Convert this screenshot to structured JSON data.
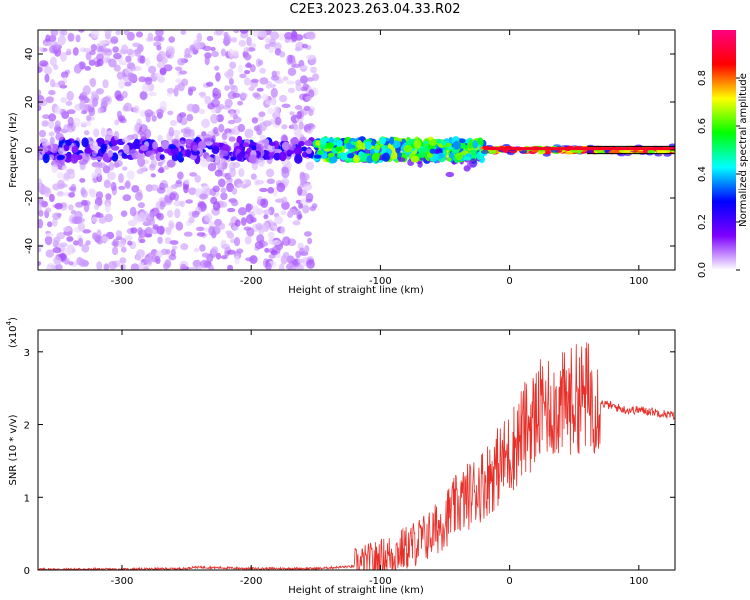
{
  "title": "C2E3.2023.263.04.33.R02",
  "chart_data": [
    {
      "type": "heatmap",
      "xlabel": "Height of straight line (km)",
      "ylabel": "Frequency (Hz)",
      "xlim": [
        -365,
        128
      ],
      "ylim": [
        -50,
        50
      ],
      "xticks": [
        -300,
        -200,
        -100,
        0,
        100
      ],
      "yticks": [
        -40,
        -20,
        0,
        20,
        40
      ],
      "colorbar": {
        "label": "Normalized spectral amplitude",
        "range": [
          0.0,
          1.0
        ],
        "ticks": [
          "0.0",
          "0.2",
          "0.4",
          "0.6",
          "0.8"
        ],
        "tick_values": [
          0.0,
          0.2,
          0.4,
          0.6,
          0.8
        ],
        "colormap": [
          "#ffffff",
          "#7d00ff",
          "#0000ff",
          "#00ffff",
          "#00ff00",
          "#ffff00",
          "#ff0000",
          "#ff0080"
        ]
      },
      "description_regions": [
        {
          "x_range": [
            -365,
            -150
          ],
          "freq_spread": 50,
          "amplitude": [
            0.05,
            0.3
          ]
        },
        {
          "x_range": [
            -150,
            -20
          ],
          "freq_spread": 10,
          "amplitude": [
            0.3,
            0.7
          ]
        },
        {
          "x_range": [
            -20,
            128
          ],
          "freq_spread": 2,
          "amplitude": [
            0.6,
            0.95
          ]
        }
      ]
    },
    {
      "type": "line",
      "xlabel": "Height of straight line (km)",
      "ylabel": "SNR (10 * v/v)",
      "yscale_label": "(x10",
      "yscale_exp": "4",
      "xlim": [
        -365,
        128
      ],
      "ylim": [
        0,
        3.3
      ],
      "xticks": [
        -300,
        -200,
        -100,
        0,
        100
      ],
      "yticks": [
        0,
        1,
        2,
        3
      ],
      "series": [
        {
          "color": "#e8302a",
          "x": [
            -365,
            -300,
            -250,
            -245,
            -200,
            -150,
            -120,
            -100,
            -80,
            -60,
            -40,
            -20,
            0,
            10,
            20,
            30,
            40,
            50,
            60,
            70,
            80,
            90,
            100,
            110,
            128
          ],
          "y": [
            0.01,
            0.01,
            0.02,
            0.04,
            0.02,
            0.02,
            0.05,
            0.15,
            0.3,
            0.5,
            0.9,
            1.2,
            1.6,
            1.9,
            2.1,
            2.3,
            2.25,
            2.35,
            2.4,
            2.3,
            2.25,
            2.2,
            2.2,
            2.18,
            2.12
          ]
        }
      ]
    }
  ]
}
